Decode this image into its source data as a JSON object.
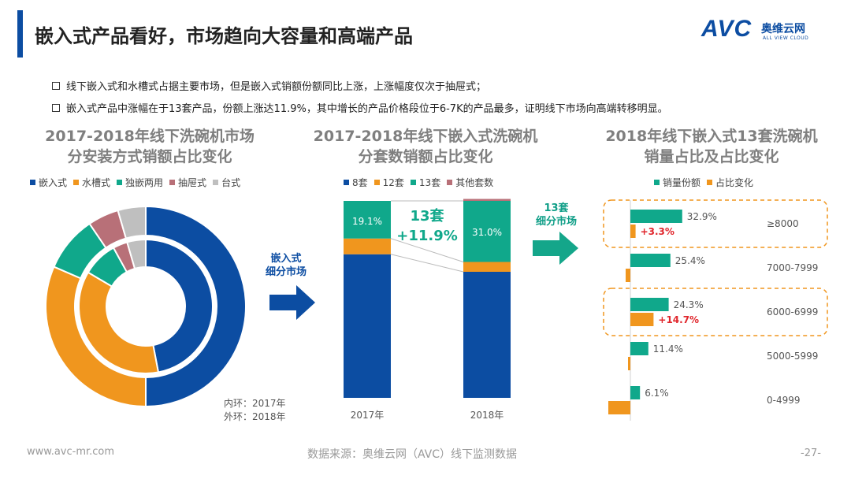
{
  "header": {
    "title": "嵌入式产品看好，市场趋向大容量和高端产品",
    "logo_mark": "AVC",
    "logo_cn": "奥维云网",
    "logo_en": "ALL VIEW CLOUD"
  },
  "bullets": [
    "线下嵌入式和水槽式占据主要市场，但是嵌入式销额份额同比上涨，上涨幅度仅次于抽屉式；",
    "嵌入式产品中涨幅在于13套产品，份额上涨达11.9%，其中增长的产品价格段位于6-7K的产品最多，证明线下市场向高端转移明显。"
  ],
  "arrows": {
    "arrow1_label_line1": "嵌入式",
    "arrow1_label_line2": "细分市场",
    "arrow2_label_line1": "13套",
    "arrow2_label_line2": "细分市场"
  },
  "colors": {
    "blue": "#0c4da2",
    "orange": "#f0961e",
    "teal": "#10a88b",
    "rose": "#b87078",
    "gray": "#bfbfbf",
    "red": "#e0262c",
    "arrow_teal": "#14a68a"
  },
  "chart_data": [
    {
      "type": "pie",
      "title_line1": "2017-2018年线下洗碗机市场",
      "title_line2": "分安装方式销额占比变化",
      "legend": [
        "嵌入式",
        "水槽式",
        "独嵌两用",
        "抽屉式",
        "台式"
      ],
      "ring_note_line1": "内环：2017年",
      "ring_note_line2": "外环：2018年",
      "inner_2017": [
        47.0,
        36.5,
        8.5,
        3.5,
        4.5
      ],
      "outer_2018": [
        50.0,
        31.5,
        9.0,
        5.0,
        4.5
      ]
    },
    {
      "type": "bar",
      "stacked": true,
      "title_line1": "2017-2018年线下嵌入式洗碗机",
      "title_line2": "分套数销额占比变化",
      "categories": [
        "2017年",
        "2018年"
      ],
      "series": [
        {
          "name": "8套",
          "values": [
            72.9,
            64.0
          ]
        },
        {
          "name": "12套",
          "values": [
            8.0,
            5.0
          ]
        },
        {
          "name": "13套",
          "values": [
            19.1,
            31.0
          ]
        },
        {
          "name": "其他套数",
          "values": [
            0.0,
            1.0
          ]
        }
      ],
      "labels": [
        "19.1%",
        "31.0%"
      ],
      "annotation_line1": "13套",
      "annotation_line2": "+11.9%",
      "ylim": [
        0,
        100
      ]
    },
    {
      "type": "bar",
      "orientation": "horizontal",
      "title_line1": "2018年线下嵌入式13套洗碗机",
      "title_line2": "销量占比及占比变化",
      "legend": [
        "销量份额",
        "占比变化"
      ],
      "categories": [
        "≥8000",
        "7000-7999",
        "6000-6999",
        "5000-5999",
        "0-4999"
      ],
      "series": [
        {
          "name": "销量份额",
          "values": [
            32.9,
            25.4,
            24.3,
            11.4,
            6.1
          ],
          "labels": [
            "32.9%",
            "25.4%",
            "24.3%",
            "11.4%",
            "6.1%"
          ]
        },
        {
          "name": "占比变化",
          "values": [
            3.3,
            -3.0,
            14.7,
            -1.5,
            -14.0
          ],
          "labels": [
            "+3.3%",
            "",
            "+14.7%",
            "",
            ""
          ]
        }
      ],
      "highlighted": [
        "≥8000",
        "6000-6999"
      ]
    }
  ],
  "footer": {
    "website": "www.avc-mr.com",
    "source": "数据来源：奥维云网（AVC）线下监测数据",
    "page": "-27-"
  }
}
